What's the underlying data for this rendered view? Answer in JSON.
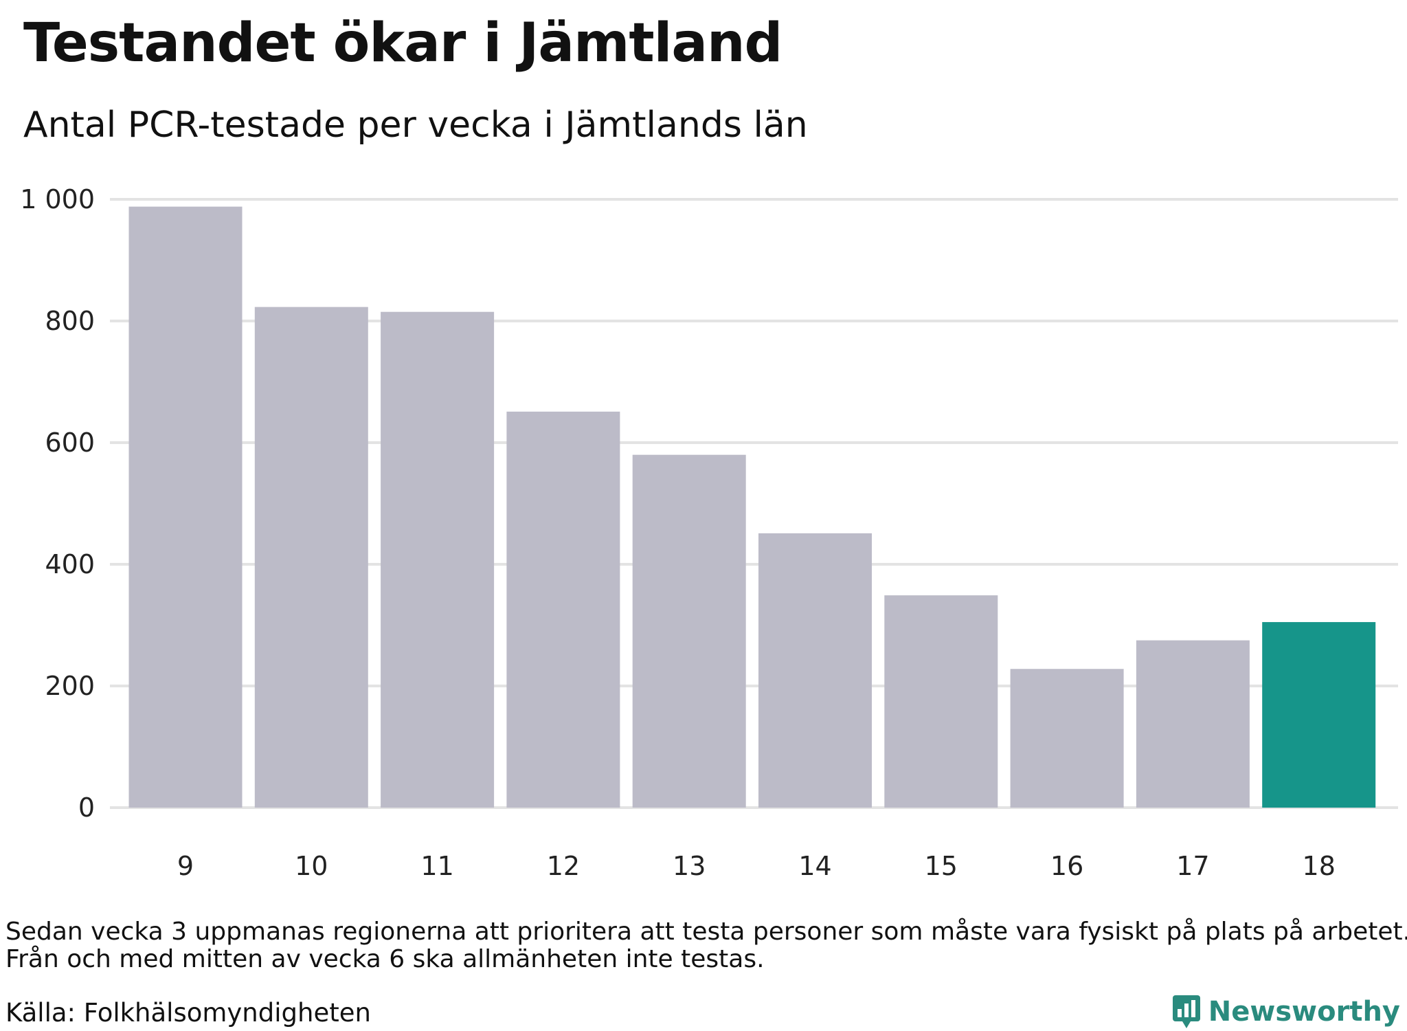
{
  "header": {
    "title": "Testandet ökar i Jämtland",
    "subtitle": "Antal PCR-testade per vecka i Jämtlands län"
  },
  "notes": {
    "line1": "Sedan vecka 3 uppmanas regionerna att prioritera att testa personer som måste vara fysiskt på plats på arbetet.",
    "line2": "Från och med mitten av vecka 6 ska allmänheten inte testas."
  },
  "footer": {
    "source": "Källa: Folkhälsomyndigheten",
    "brand": "Newsworthy",
    "brand_icon": "bar-chart-bubble-icon"
  },
  "colors": {
    "bar_default": "#bcbbc8",
    "bar_highlight": "#16958a",
    "gridline": "#e3e3e3",
    "brand": "#2a8b7e"
  },
  "chart_data": {
    "type": "bar",
    "title": "Testandet ökar i Jämtland",
    "subtitle": "Antal PCR-testade per vecka i Jämtlands län",
    "xlabel": "",
    "ylabel": "",
    "categories": [
      "9",
      "10",
      "11",
      "12",
      "13",
      "14",
      "15",
      "16",
      "17",
      "18"
    ],
    "values": [
      988,
      823,
      815,
      651,
      580,
      451,
      349,
      228,
      275,
      305
    ],
    "highlight_index": 9,
    "ylim": [
      0,
      1000
    ],
    "yticks": [
      0,
      200,
      400,
      600,
      800,
      1000
    ],
    "ytick_labels": [
      "0",
      "200",
      "400",
      "600",
      "800",
      "1 000"
    ],
    "grid": true,
    "legend": "none"
  }
}
